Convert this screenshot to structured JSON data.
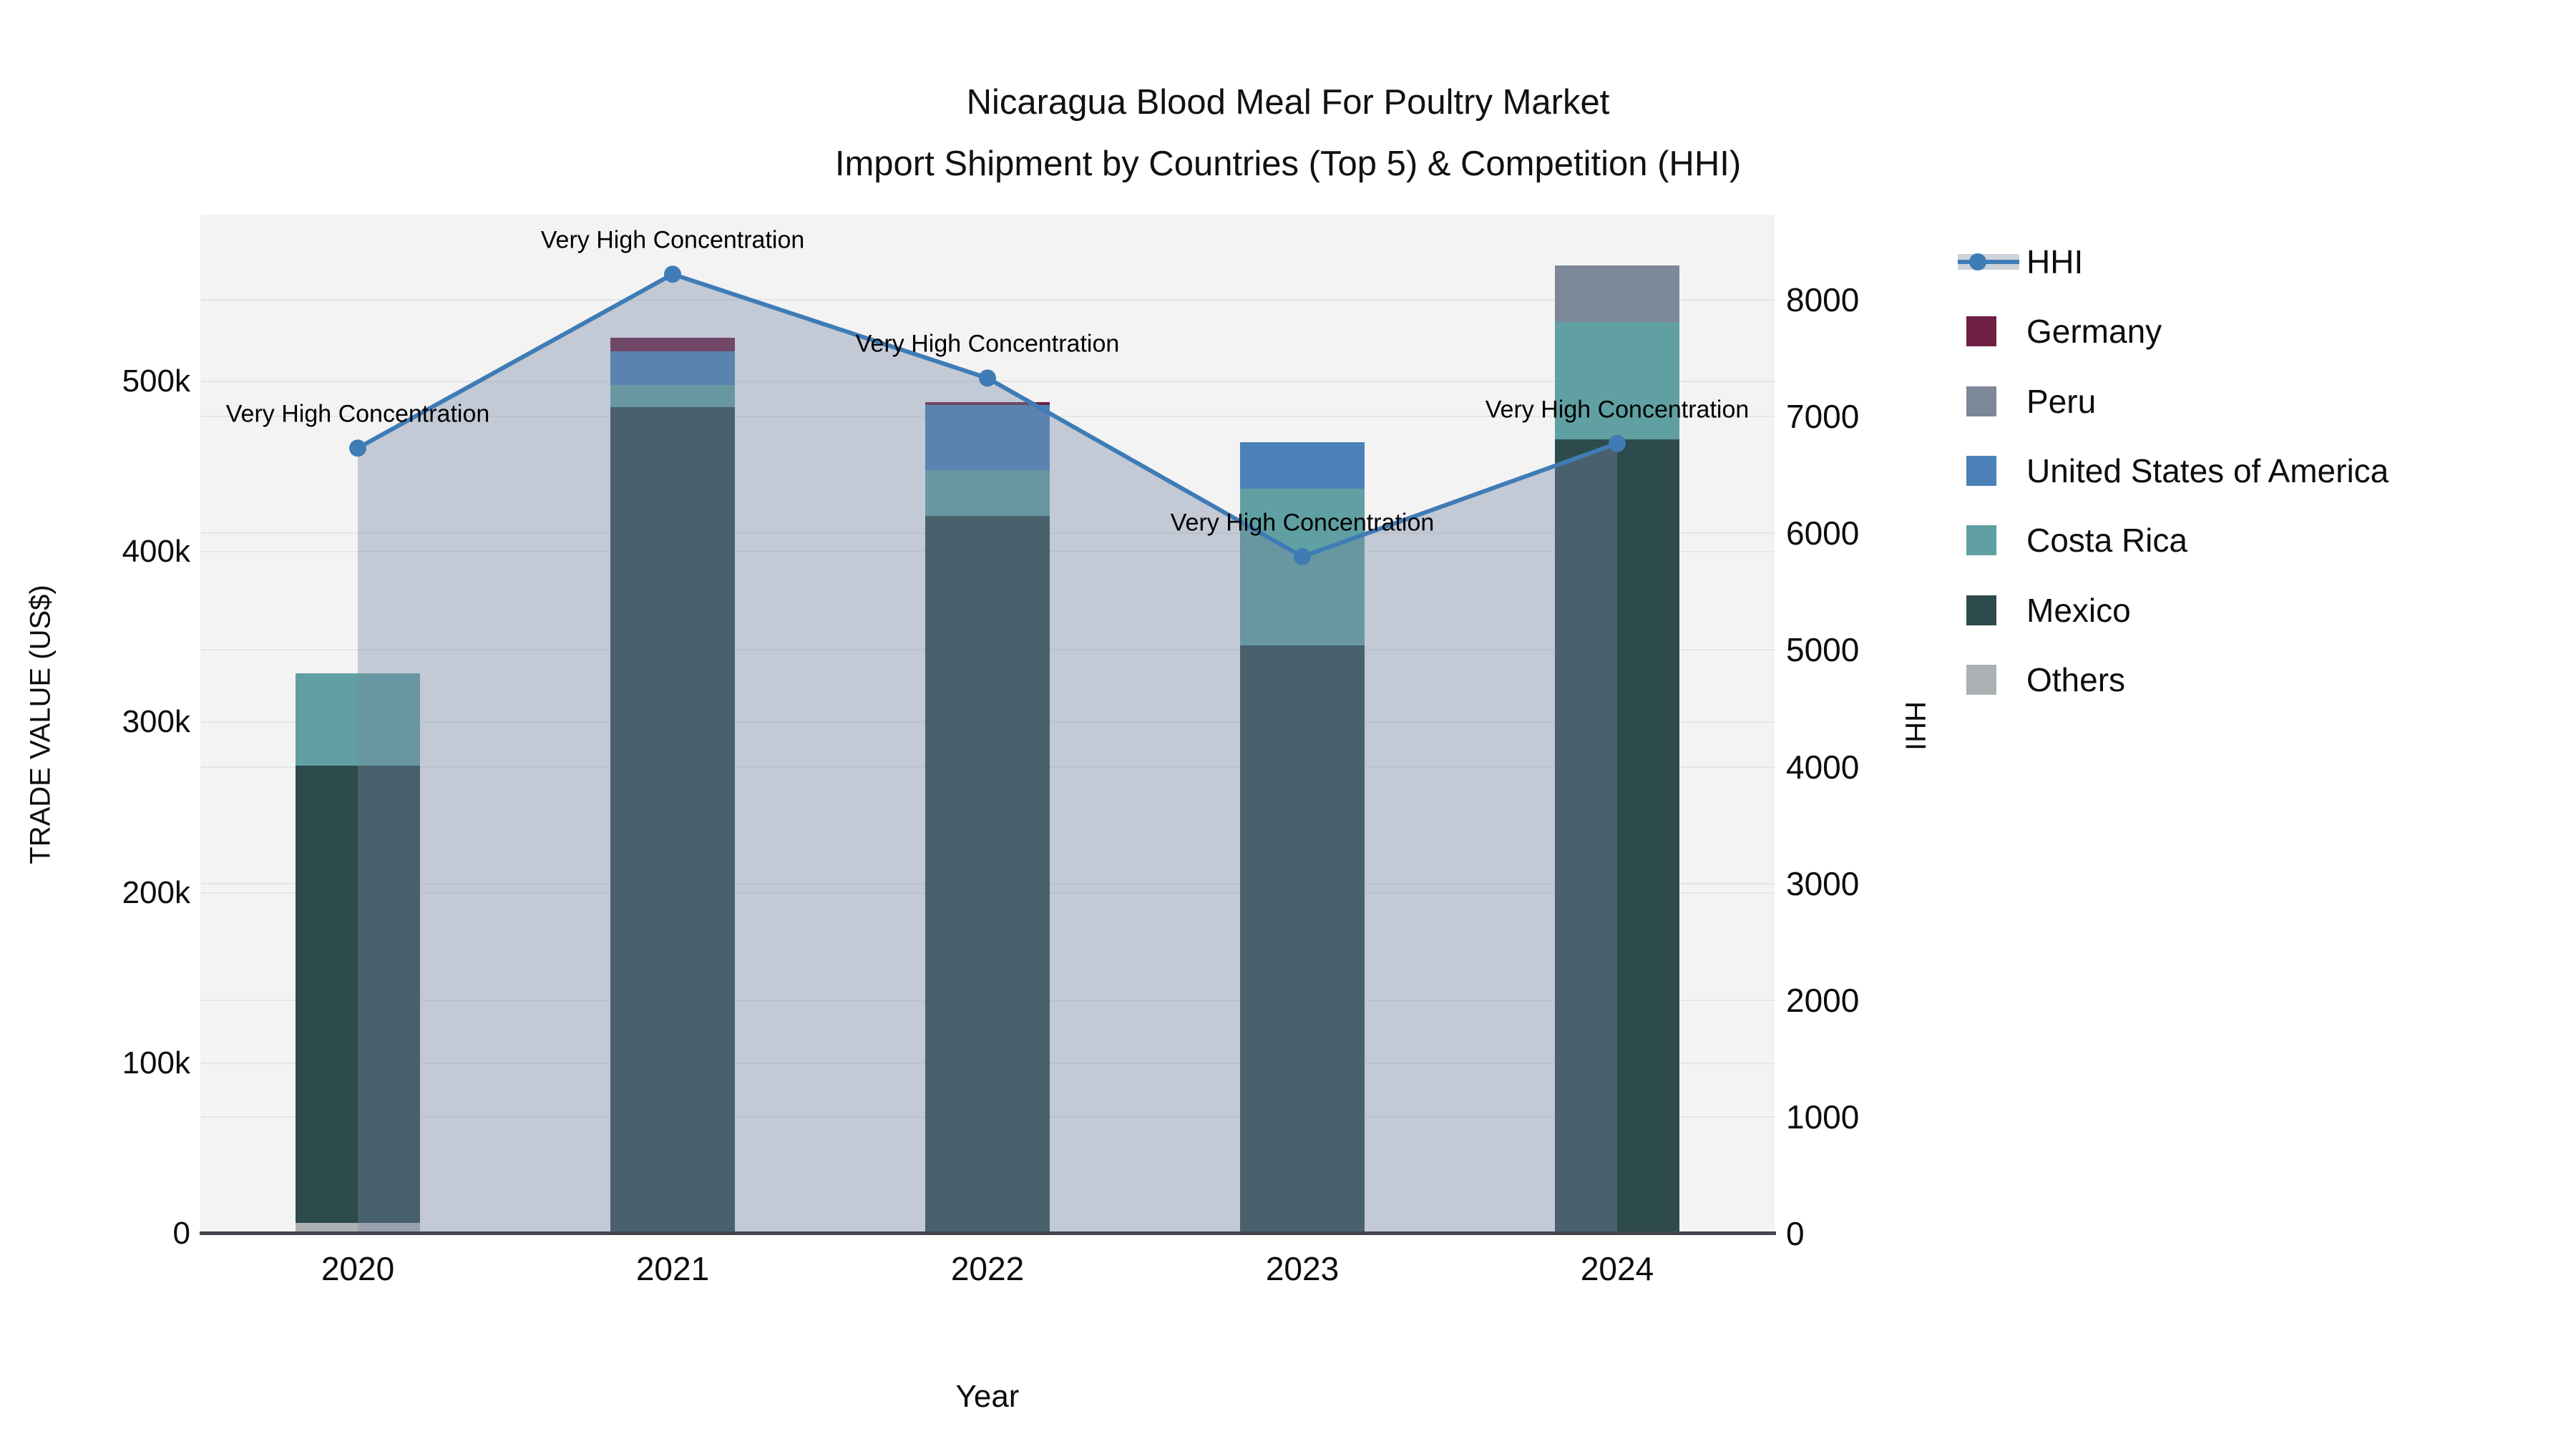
{
  "title": {
    "line1": "Nicaragua Blood Meal For Poultry Market",
    "line2": "Import Shipment by Countries (Top 5) & Competition (HHI)"
  },
  "axes": {
    "x_title": "Year",
    "y_left_title": "TRADE VALUE (US$)",
    "y_right_title": "HHI",
    "y_left_ticks": [
      {
        "label": "0",
        "value": 0
      },
      {
        "label": "100k",
        "value": 100000
      },
      {
        "label": "200k",
        "value": 200000
      },
      {
        "label": "300k",
        "value": 300000
      },
      {
        "label": "400k",
        "value": 400000
      },
      {
        "label": "500k",
        "value": 500000
      }
    ],
    "y_right_ticks": [
      {
        "label": "0",
        "value": 0
      },
      {
        "label": "1000",
        "value": 1000
      },
      {
        "label": "2000",
        "value": 2000
      },
      {
        "label": "3000",
        "value": 3000
      },
      {
        "label": "4000",
        "value": 4000
      },
      {
        "label": "5000",
        "value": 5000
      },
      {
        "label": "6000",
        "value": 6000
      },
      {
        "label": "7000",
        "value": 7000
      },
      {
        "label": "8000",
        "value": 8000
      }
    ]
  },
  "colors": {
    "HHI": "#3f7cb6",
    "HHI_fill": "rgba(119,136,162,0.38)",
    "Germany": "#6d2044",
    "Peru": "#7c8798",
    "United States of America": "#4a81b6",
    "Costa Rica": "#60a0a2",
    "Mexico": "#2d4a4c",
    "Others": "#adb0b2"
  },
  "legend": [
    {
      "label": "HHI",
      "type": "line"
    },
    {
      "label": "Germany",
      "type": "box"
    },
    {
      "label": "Peru",
      "type": "box"
    },
    {
      "label": "United States of America",
      "type": "box"
    },
    {
      "label": "Costa Rica",
      "type": "box"
    },
    {
      "label": "Mexico",
      "type": "box"
    },
    {
      "label": "Others",
      "type": "box"
    }
  ],
  "annotation_text": "Very High Concentration",
  "chart_data": {
    "type": "bar",
    "subtype": "stacked-bars-with-line",
    "title": "Nicaragua Blood Meal For Poultry Market Import Shipment by Countries (Top 5) & Competition (HHI)",
    "xlabel": "Year",
    "ylabel_left": "TRADE VALUE (US$)",
    "ylabel_right": "HHI",
    "categories": [
      "2020",
      "2021",
      "2022",
      "2023",
      "2024"
    ],
    "stack_order_bottom_to_top": [
      "Others",
      "Mexico",
      "Costa Rica",
      "United States of America",
      "Peru",
      "Germany"
    ],
    "series": [
      {
        "name": "Germany",
        "axis": "left",
        "values": [
          0,
          8000,
          2000,
          0,
          0
        ]
      },
      {
        "name": "Peru",
        "axis": "left",
        "values": [
          0,
          0,
          0,
          0,
          33000
        ]
      },
      {
        "name": "United States of America",
        "axis": "left",
        "values": [
          0,
          19500,
          38000,
          27500,
          0
        ]
      },
      {
        "name": "Costa Rica",
        "axis": "left",
        "values": [
          54000,
          13000,
          27000,
          92000,
          69000
        ]
      },
      {
        "name": "Mexico",
        "axis": "left",
        "values": [
          268000,
          485000,
          421000,
          345000,
          466000
        ]
      },
      {
        "name": "Others",
        "axis": "left",
        "values": [
          6500,
          0,
          0,
          0,
          0
        ]
      }
    ],
    "line_series": {
      "name": "HHI",
      "axis": "right",
      "values": [
        6730,
        8220,
        7330,
        5800,
        6770
      ],
      "area_fill": true
    },
    "bar_totals": [
      328500,
      525500,
      488000,
      464500,
      568000
    ],
    "annotations": [
      {
        "x": "2020",
        "text": "Very High Concentration"
      },
      {
        "x": "2021",
        "text": "Very High Concentration"
      },
      {
        "x": "2022",
        "text": "Very High Concentration"
      },
      {
        "x": "2023",
        "text": "Very High Concentration"
      },
      {
        "x": "2024",
        "text": "Very High Concentration"
      }
    ],
    "ylim_left": [
      0,
      597800
    ],
    "ylim_right": [
      0,
      8730
    ],
    "grid": true,
    "legend_position": "right"
  }
}
